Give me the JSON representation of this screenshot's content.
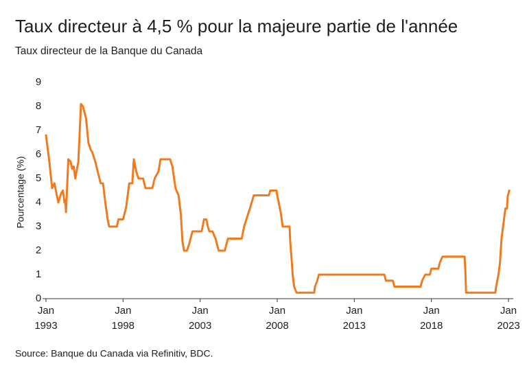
{
  "chart_data": {
    "type": "line",
    "title": "Taux directeur à 4,5 % pour la majeure partie de l'année",
    "subtitle": "Taux directeur de la Banque du Canada",
    "y_label": "Pourcentage (%)",
    "source": "Source: Banque du Canada via Refinitiv, BDC.",
    "x": [
      1993.0,
      1993.2,
      1993.4,
      1993.55,
      1993.8,
      1994.0,
      1994.1,
      1994.2,
      1994.25,
      1994.3,
      1994.45,
      1994.6,
      1994.7,
      1994.8,
      1994.9,
      1995.1,
      1995.27,
      1995.4,
      1995.6,
      1995.75,
      1995.9,
      1996.0,
      1996.2,
      1996.35,
      1996.55,
      1996.7,
      1996.85,
      1997.0,
      1997.1,
      1997.6,
      1997.7,
      1998.0,
      1998.2,
      1998.4,
      1998.6,
      1998.7,
      1998.85,
      1999.0,
      1999.3,
      1999.45,
      1999.9,
      2000.05,
      2000.3,
      2000.43,
      2001.05,
      2001.2,
      2001.4,
      2001.6,
      2001.75,
      2001.85,
      2001.95,
      2002.15,
      2002.3,
      2002.5,
      2003.1,
      2003.25,
      2003.4,
      2003.5,
      2003.6,
      2003.8,
      2004.0,
      2004.2,
      2004.6,
      2004.8,
      2005.7,
      2005.85,
      2006.0,
      2006.25,
      2006.48,
      2007.46,
      2007.55,
      2007.95,
      2008.0,
      2008.1,
      2008.25,
      2008.35,
      2008.8,
      2008.85,
      2008.95,
      2009.0,
      2009.1,
      2009.25,
      2010.4,
      2010.45,
      2010.6,
      2010.7,
      2014.95,
      2015.05,
      2015.5,
      2015.6,
      2017.3,
      2017.4,
      2017.6,
      2017.9,
      2018.0,
      2018.45,
      2018.55,
      2018.72,
      2020.15,
      2020.2,
      2020.25,
      2022.15,
      2022.2,
      2022.35,
      2022.45,
      2022.55,
      2022.7,
      2022.8,
      2022.9,
      2022.95,
      2023.05
    ],
    "series": [
      {
        "name": "Taux directeur",
        "color": "#f07a1e",
        "values": [
          6.8,
          5.8,
          4.6,
          4.8,
          4.0,
          4.4,
          4.5,
          4.0,
          4.1,
          3.6,
          5.8,
          5.7,
          5.4,
          5.5,
          5.0,
          5.7,
          8.1,
          8.0,
          7.5,
          6.5,
          6.2,
          6.1,
          5.7,
          5.3,
          4.8,
          4.8,
          4.0,
          3.3,
          3.0,
          3.0,
          3.3,
          3.3,
          3.8,
          4.8,
          4.8,
          5.8,
          5.3,
          5.0,
          5.0,
          4.6,
          4.6,
          5.0,
          5.3,
          5.8,
          5.8,
          5.5,
          4.6,
          4.3,
          3.5,
          2.4,
          2.0,
          2.0,
          2.3,
          2.8,
          2.8,
          3.3,
          3.3,
          3.0,
          2.8,
          2.8,
          2.5,
          2.0,
          2.0,
          2.5,
          2.5,
          3.0,
          3.3,
          3.8,
          4.3,
          4.3,
          4.5,
          4.5,
          4.3,
          4.0,
          3.5,
          3.0,
          3.0,
          2.3,
          1.5,
          1.0,
          0.5,
          0.25,
          0.25,
          0.5,
          0.75,
          1.0,
          1.0,
          0.75,
          0.75,
          0.5,
          0.5,
          0.75,
          1.0,
          1.0,
          1.25,
          1.25,
          1.5,
          1.75,
          1.75,
          1.25,
          0.25,
          0.25,
          0.5,
          1.0,
          1.5,
          2.5,
          3.25,
          3.75,
          3.75,
          4.25,
          4.5
        ]
      }
    ],
    "xlim": [
      1993.0,
      2023.1
    ],
    "xticks": [
      {
        "value": 1993,
        "label": [
          "Jan",
          "1993"
        ]
      },
      {
        "value": 1998,
        "label": [
          "Jan",
          "1998"
        ]
      },
      {
        "value": 2003,
        "label": [
          "Jan",
          "2003"
        ]
      },
      {
        "value": 2008,
        "label": [
          "Jan",
          "2008"
        ]
      },
      {
        "value": 2013,
        "label": [
          "Jan",
          "2013"
        ]
      },
      {
        "value": 2018,
        "label": [
          "Jan",
          "2018"
        ]
      },
      {
        "value": 2023,
        "label": [
          "Jan",
          "2023"
        ]
      }
    ],
    "ylim": [
      0,
      9
    ],
    "yticks": [
      0,
      1,
      2,
      3,
      4,
      5,
      6,
      7,
      8,
      9
    ],
    "grid": false
  }
}
